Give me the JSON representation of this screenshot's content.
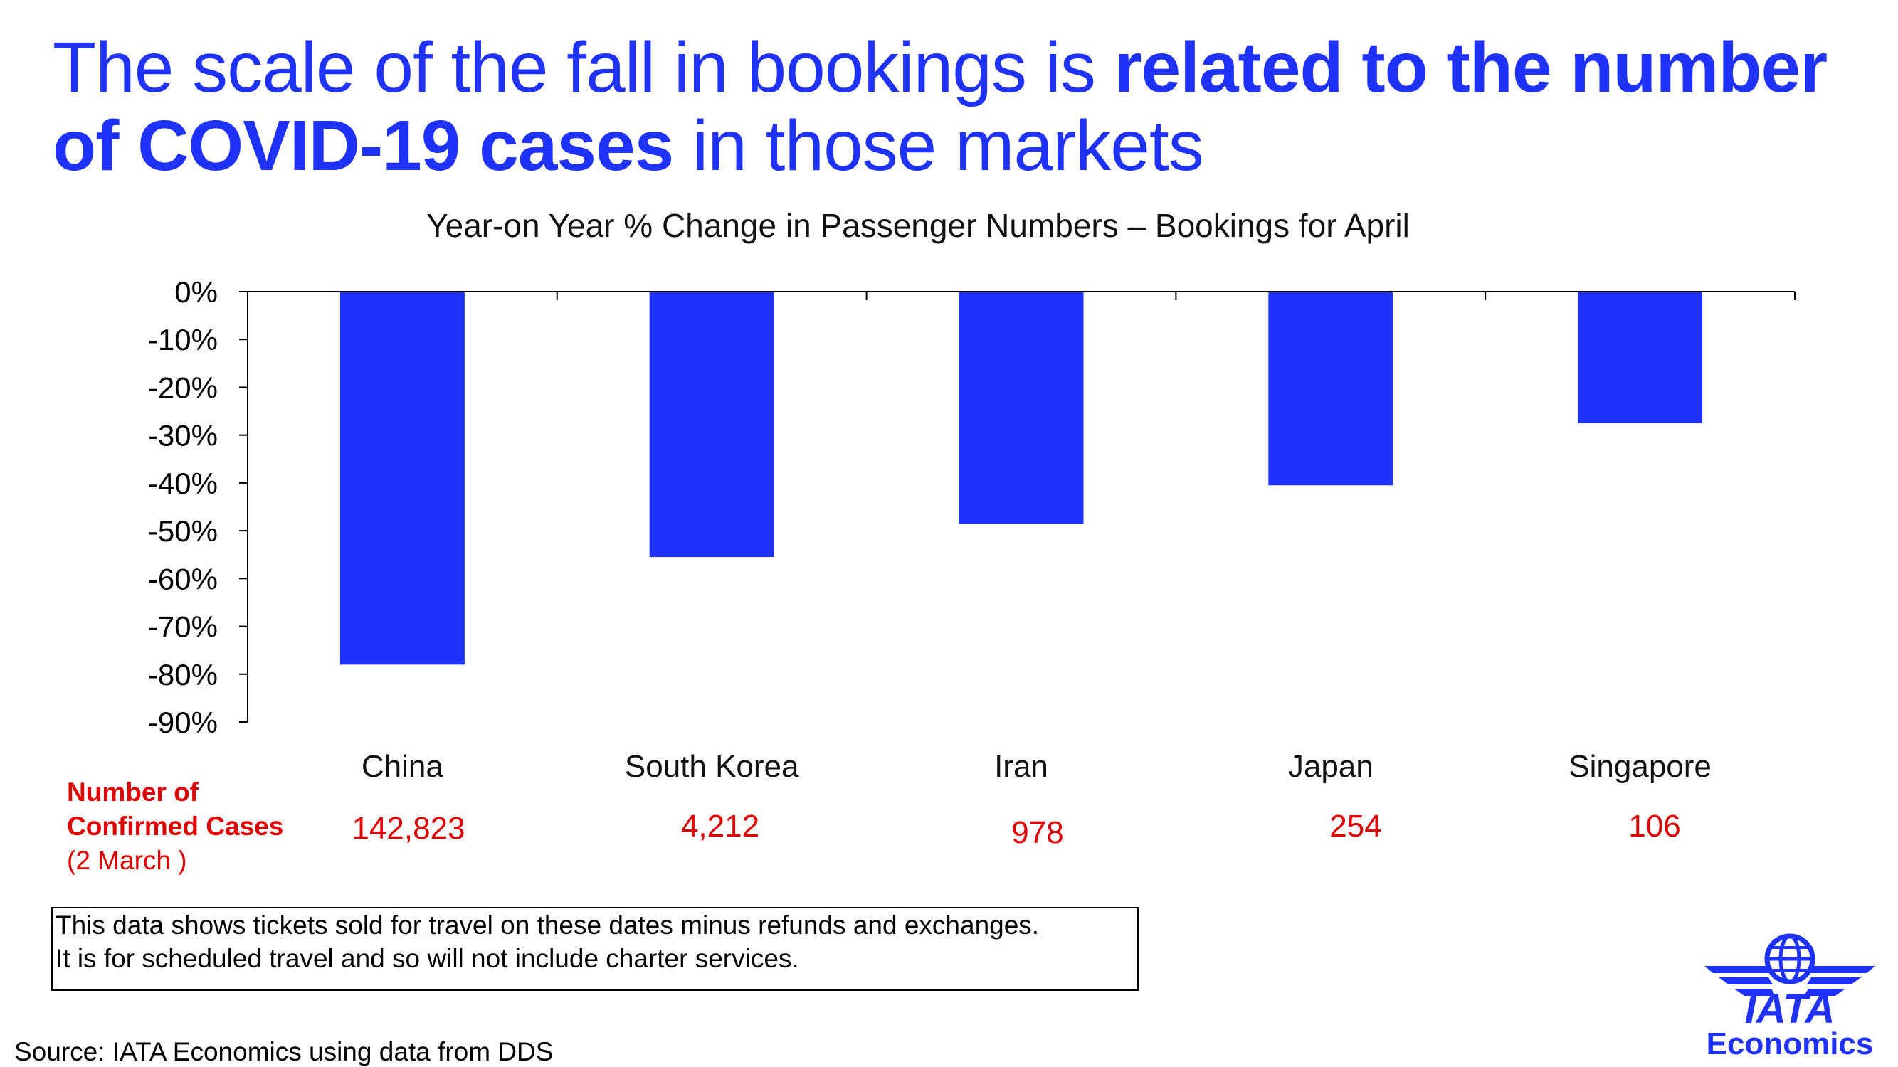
{
  "title": {
    "part1": "The scale of the fall in bookings is ",
    "part2": "related to the number of COVID-19 cases",
    "part3": " in those markets"
  },
  "chart_data": {
    "type": "bar",
    "title": "Year-on Year % Change in Passenger Numbers – Bookings for April",
    "categories": [
      "China",
      "South Korea",
      "Iran",
      "Japan",
      "Singapore"
    ],
    "values": [
      -78,
      -55.5,
      -48.5,
      -40.5,
      -27.5
    ],
    "ylim": [
      -90,
      0
    ],
    "yticks": [
      "0%",
      "-10%",
      "-20%",
      "-30%",
      "-40%",
      "-50%",
      "-60%",
      "-70%",
      "-80%",
      "-90%"
    ],
    "xlabel": "",
    "ylabel": "",
    "bar_color": "#1e32fa",
    "grid": false
  },
  "cases": {
    "label_line1": "Number of",
    "label_line2": "Confirmed Cases",
    "label_line3": "(2 March )",
    "values": [
      "142,823",
      "4,212",
      "978",
      "254",
      "106"
    ]
  },
  "note": {
    "line1": "This data shows tickets sold for travel on these dates minus refunds and exchanges.",
    "line2": "It is for scheduled travel and so will not include charter services."
  },
  "source": "Source: IATA Economics using data from DDS",
  "logo": {
    "name": "IATA",
    "subtitle": "Economics",
    "icon": "iata-globe-wings-icon",
    "color": "#1e32fa"
  }
}
